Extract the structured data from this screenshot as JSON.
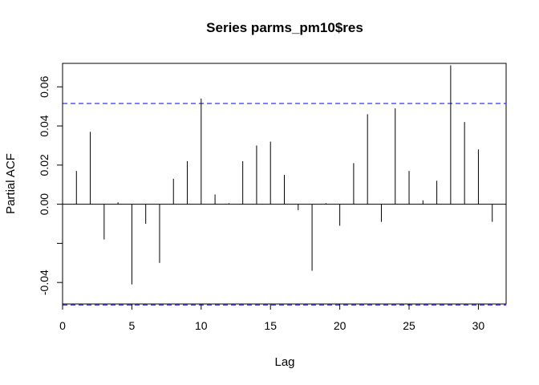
{
  "chart_data": {
    "type": "bar",
    "title": "Series  parms_pm10$res",
    "xlabel": "Lag",
    "ylabel": "Partial ACF",
    "xlim": [
      0,
      32
    ],
    "ylim": [
      -0.051,
      0.072
    ],
    "x_ticks": [
      0,
      5,
      10,
      15,
      20,
      25,
      30
    ],
    "x_tick_labels": [
      "0",
      "5",
      "10",
      "15",
      "20",
      "25",
      "30"
    ],
    "y_ticks": [
      -0.04,
      -0.02,
      0.0,
      0.02,
      0.04,
      0.06
    ],
    "y_tick_labels": [
      "-0.04",
      "",
      "0.00",
      "0.02",
      "0.04",
      "0.06"
    ],
    "lags": [
      1,
      2,
      3,
      4,
      5,
      6,
      7,
      8,
      9,
      10,
      11,
      12,
      13,
      14,
      15,
      16,
      17,
      18,
      19,
      20,
      21,
      22,
      23,
      24,
      25,
      26,
      27,
      28,
      29,
      30,
      31
    ],
    "values": [
      0.017,
      0.037,
      -0.018,
      0.001,
      -0.041,
      -0.01,
      -0.03,
      0.013,
      0.022,
      0.054,
      0.005,
      0.0005,
      0.022,
      0.03,
      0.032,
      0.015,
      -0.003,
      -0.034,
      0.0005,
      -0.011,
      0.021,
      0.046,
      -0.009,
      0.049,
      0.017,
      0.002,
      0.012,
      0.071,
      0.042,
      0.028,
      -0.009
    ],
    "ci_upper": 0.0515,
    "ci_lower": -0.0515,
    "ci_color": "#3333ff",
    "bar_color": "#000000"
  }
}
